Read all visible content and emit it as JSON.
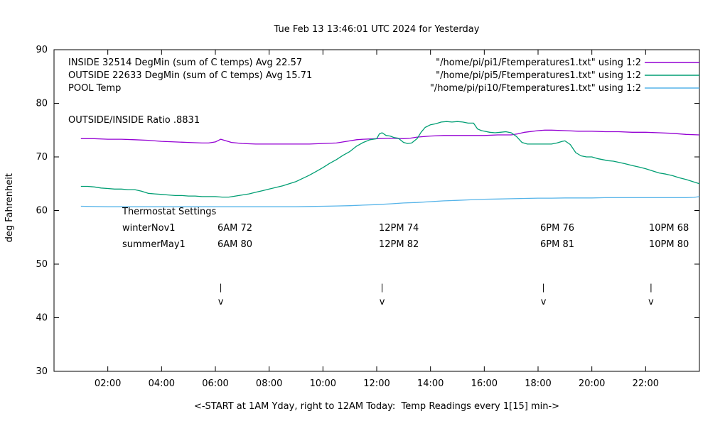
{
  "title": "Tue Feb 13 13:46:01 UTC 2024 for Yesterday",
  "y_axis_label": "deg Fahrenheit",
  "x_axis_label": "<-START at 1AM Yday, right to 12AM Today:  Temp Readings every 1[15] min->",
  "ratio_note": "OUTSIDE/INSIDE Ratio .8831",
  "legend": {
    "entries": [
      {
        "label": "INSIDE 32514 DegMin (sum of C temps) Avg 22.57",
        "file": "\"/home/pi/pi1/Ftemperatures1.txt\" using 1:2"
      },
      {
        "label": "OUTSIDE 22633 DegMin (sum of C temps) Avg 15.71",
        "file": "\"/home/pi/pi5/Ftemperatures1.txt\" using 1:2"
      },
      {
        "label": "POOL Temp",
        "file": "\"/home/pi/pi10/Ftemperatures1.txt\" using 1:2"
      }
    ]
  },
  "thermostat": {
    "heading": "Thermostat Settings",
    "rows": [
      {
        "name": "winterNov1",
        "c1": "6AM 72",
        "c2": "12PM 74",
        "c3": "6PM 76",
        "c4": "10PM 68"
      },
      {
        "name": "summerMay1",
        "c1": "6AM 80",
        "c2": "12PM 82",
        "c3": "6PM 81",
        "c4": "10PM 80"
      }
    ]
  },
  "chart_data": {
    "type": "line",
    "title": "Tue Feb 13 13:46:01 UTC 2024 for Yesterday",
    "xlabel": "<-START at 1AM Yday, right to 12AM Today:  Temp Readings every 1[15] min->",
    "ylabel": "deg Fahrenheit",
    "xlim": [
      0,
      24
    ],
    "ylim": [
      30,
      90
    ],
    "grid": false,
    "legend_position": "top-inside",
    "x_ticks": [
      {
        "v": 2,
        "label": "02:00"
      },
      {
        "v": 4,
        "label": "04:00"
      },
      {
        "v": 6,
        "label": "06:00"
      },
      {
        "v": 8,
        "label": "08:00"
      },
      {
        "v": 10,
        "label": "10:00"
      },
      {
        "v": 12,
        "label": "12:00"
      },
      {
        "v": 14,
        "label": "14:00"
      },
      {
        "v": 16,
        "label": "16:00"
      },
      {
        "v": 18,
        "label": "18:00"
      },
      {
        "v": 20,
        "label": "20:00"
      },
      {
        "v": 22,
        "label": "22:00"
      }
    ],
    "y_ticks": [
      {
        "v": 30,
        "label": "30"
      },
      {
        "v": 40,
        "label": "40"
      },
      {
        "v": 50,
        "label": "50"
      },
      {
        "v": 60,
        "label": "60"
      },
      {
        "v": 70,
        "label": "70"
      },
      {
        "v": 80,
        "label": "80"
      },
      {
        "v": 90,
        "label": "90"
      }
    ],
    "arrows": {
      "x_positions": [
        6.2,
        12.2,
        18.2,
        22.2
      ],
      "line_from": 46.35,
      "line_to": 44.75,
      "head_at": 43.0
    },
    "series": [
      {
        "name": "INSIDE",
        "color": "#9400d3",
        "points": [
          [
            1,
            73.4
          ],
          [
            1.5,
            73.4
          ],
          [
            2,
            73.3
          ],
          [
            2.5,
            73.3
          ],
          [
            3,
            73.2
          ],
          [
            3.5,
            73.1
          ],
          [
            4,
            72.9
          ],
          [
            4.5,
            72.8
          ],
          [
            5,
            72.7
          ],
          [
            5.5,
            72.6
          ],
          [
            5.75,
            72.6
          ],
          [
            6,
            72.8
          ],
          [
            6.2,
            73.3
          ],
          [
            6.4,
            73.0
          ],
          [
            6.6,
            72.7
          ],
          [
            7,
            72.5
          ],
          [
            7.5,
            72.4
          ],
          [
            8,
            72.4
          ],
          [
            8.5,
            72.4
          ],
          [
            9,
            72.4
          ],
          [
            9.5,
            72.4
          ],
          [
            10,
            72.5
          ],
          [
            10.5,
            72.6
          ],
          [
            10.75,
            72.8
          ],
          [
            11,
            73.0
          ],
          [
            11.25,
            73.2
          ],
          [
            11.5,
            73.3
          ],
          [
            12,
            73.4
          ],
          [
            12.5,
            73.5
          ],
          [
            13,
            73.4
          ],
          [
            13.25,
            73.5
          ],
          [
            13.5,
            73.7
          ],
          [
            14,
            73.9
          ],
          [
            14.5,
            74.0
          ],
          [
            15,
            74.0
          ],
          [
            15.5,
            74.0
          ],
          [
            16,
            74.0
          ],
          [
            16.5,
            74.1
          ],
          [
            17,
            74.1
          ],
          [
            17.25,
            74.3
          ],
          [
            17.5,
            74.6
          ],
          [
            18,
            74.9
          ],
          [
            18.25,
            75.0
          ],
          [
            18.5,
            75.0
          ],
          [
            19,
            74.9
          ],
          [
            19.5,
            74.8
          ],
          [
            20,
            74.8
          ],
          [
            20.5,
            74.7
          ],
          [
            21,
            74.7
          ],
          [
            21.5,
            74.6
          ],
          [
            22,
            74.6
          ],
          [
            22.5,
            74.5
          ],
          [
            23,
            74.4
          ],
          [
            23.5,
            74.2
          ],
          [
            24,
            74.1
          ]
        ]
      },
      {
        "name": "OUTSIDE",
        "color": "#009e73",
        "points": [
          [
            1,
            64.5
          ],
          [
            1.25,
            64.5
          ],
          [
            1.5,
            64.4
          ],
          [
            1.75,
            64.2
          ],
          [
            2,
            64.1
          ],
          [
            2.25,
            64.0
          ],
          [
            2.5,
            64.0
          ],
          [
            2.75,
            63.9
          ],
          [
            3,
            63.9
          ],
          [
            3.25,
            63.6
          ],
          [
            3.5,
            63.2
          ],
          [
            3.75,
            63.1
          ],
          [
            4,
            63.0
          ],
          [
            4.25,
            62.9
          ],
          [
            4.5,
            62.8
          ],
          [
            4.75,
            62.8
          ],
          [
            5,
            62.7
          ],
          [
            5.25,
            62.7
          ],
          [
            5.5,
            62.6
          ],
          [
            5.75,
            62.6
          ],
          [
            6,
            62.6
          ],
          [
            6.25,
            62.5
          ],
          [
            6.5,
            62.5
          ],
          [
            6.75,
            62.7
          ],
          [
            7,
            62.9
          ],
          [
            7.25,
            63.1
          ],
          [
            7.5,
            63.4
          ],
          [
            7.75,
            63.7
          ],
          [
            8,
            64.0
          ],
          [
            8.25,
            64.3
          ],
          [
            8.5,
            64.6
          ],
          [
            8.75,
            65.0
          ],
          [
            9,
            65.4
          ],
          [
            9.25,
            66.0
          ],
          [
            9.5,
            66.6
          ],
          [
            9.75,
            67.3
          ],
          [
            10,
            68.0
          ],
          [
            10.25,
            68.8
          ],
          [
            10.5,
            69.5
          ],
          [
            10.75,
            70.3
          ],
          [
            11,
            71.0
          ],
          [
            11.25,
            72.0
          ],
          [
            11.5,
            72.7
          ],
          [
            11.75,
            73.2
          ],
          [
            12,
            73.4
          ],
          [
            12.1,
            74.3
          ],
          [
            12.2,
            74.5
          ],
          [
            12.35,
            74.0
          ],
          [
            12.5,
            73.9
          ],
          [
            12.65,
            73.6
          ],
          [
            12.8,
            73.5
          ],
          [
            13,
            72.7
          ],
          [
            13.15,
            72.5
          ],
          [
            13.3,
            72.6
          ],
          [
            13.5,
            73.4
          ],
          [
            13.65,
            74.6
          ],
          [
            13.8,
            75.5
          ],
          [
            14,
            76.0
          ],
          [
            14.2,
            76.2
          ],
          [
            14.4,
            76.5
          ],
          [
            14.6,
            76.6
          ],
          [
            14.8,
            76.5
          ],
          [
            15,
            76.6
          ],
          [
            15.2,
            76.5
          ],
          [
            15.4,
            76.3
          ],
          [
            15.6,
            76.3
          ],
          [
            15.75,
            75.2
          ],
          [
            15.9,
            74.9
          ],
          [
            16,
            74.8
          ],
          [
            16.2,
            74.6
          ],
          [
            16.4,
            74.5
          ],
          [
            16.6,
            74.6
          ],
          [
            16.8,
            74.7
          ],
          [
            17,
            74.5
          ],
          [
            17.2,
            73.8
          ],
          [
            17.4,
            72.7
          ],
          [
            17.6,
            72.4
          ],
          [
            17.8,
            72.4
          ],
          [
            18,
            72.4
          ],
          [
            18.25,
            72.4
          ],
          [
            18.5,
            72.4
          ],
          [
            18.7,
            72.6
          ],
          [
            18.9,
            72.9
          ],
          [
            19,
            73.0
          ],
          [
            19.2,
            72.3
          ],
          [
            19.4,
            70.8
          ],
          [
            19.6,
            70.2
          ],
          [
            19.8,
            70.0
          ],
          [
            20,
            70.0
          ],
          [
            20.2,
            69.7
          ],
          [
            20.4,
            69.5
          ],
          [
            20.6,
            69.3
          ],
          [
            20.8,
            69.2
          ],
          [
            21,
            69.0
          ],
          [
            21.25,
            68.7
          ],
          [
            21.5,
            68.4
          ],
          [
            21.75,
            68.1
          ],
          [
            22,
            67.8
          ],
          [
            22.25,
            67.4
          ],
          [
            22.5,
            67.0
          ],
          [
            22.75,
            66.8
          ],
          [
            23,
            66.5
          ],
          [
            23.25,
            66.1
          ],
          [
            23.5,
            65.8
          ],
          [
            23.75,
            65.4
          ],
          [
            24,
            65.0
          ]
        ]
      },
      {
        "name": "POOL",
        "color": "#56b4e9",
        "points": [
          [
            1,
            60.8
          ],
          [
            2,
            60.7
          ],
          [
            3,
            60.7
          ],
          [
            4,
            60.7
          ],
          [
            5,
            60.7
          ],
          [
            6,
            60.7
          ],
          [
            7,
            60.7
          ],
          [
            8,
            60.7
          ],
          [
            9,
            60.7
          ],
          [
            9.5,
            60.75
          ],
          [
            10,
            60.8
          ],
          [
            10.5,
            60.85
          ],
          [
            11,
            60.9
          ],
          [
            11.5,
            61.0
          ],
          [
            12,
            61.1
          ],
          [
            12.5,
            61.25
          ],
          [
            13,
            61.4
          ],
          [
            13.5,
            61.5
          ],
          [
            14,
            61.65
          ],
          [
            14.5,
            61.8
          ],
          [
            15,
            61.9
          ],
          [
            15.5,
            62.0
          ],
          [
            16,
            62.1
          ],
          [
            16.5,
            62.15
          ],
          [
            17,
            62.2
          ],
          [
            17.5,
            62.25
          ],
          [
            18,
            62.3
          ],
          [
            18.5,
            62.3
          ],
          [
            19,
            62.35
          ],
          [
            19.5,
            62.35
          ],
          [
            20,
            62.35
          ],
          [
            20.5,
            62.4
          ],
          [
            21,
            62.4
          ],
          [
            21.5,
            62.4
          ],
          [
            22,
            62.4
          ],
          [
            22.5,
            62.4
          ],
          [
            23,
            62.4
          ],
          [
            23.5,
            62.4
          ],
          [
            23.8,
            62.45
          ],
          [
            24,
            62.6
          ]
        ]
      }
    ]
  }
}
